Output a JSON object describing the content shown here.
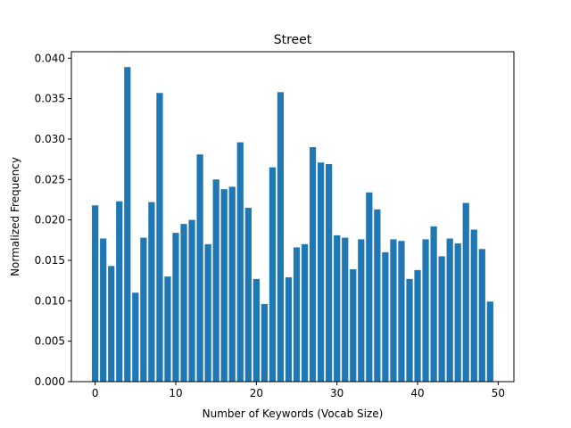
{
  "chart_data": {
    "type": "bar",
    "title": "Street",
    "xlabel": "Number of Keywords (Vocab Size)",
    "ylabel": "Normalized Frequency",
    "x": [
      0,
      1,
      2,
      3,
      4,
      5,
      6,
      7,
      8,
      9,
      10,
      11,
      12,
      13,
      14,
      15,
      16,
      17,
      18,
      19,
      20,
      21,
      22,
      23,
      24,
      25,
      26,
      27,
      28,
      29,
      30,
      31,
      32,
      33,
      34,
      35,
      36,
      37,
      38,
      39,
      40,
      41,
      42,
      43,
      44,
      45,
      46,
      47,
      48,
      49
    ],
    "values": [
      0.0218,
      0.0177,
      0.0143,
      0.0223,
      0.0389,
      0.011,
      0.0178,
      0.0222,
      0.0357,
      0.013,
      0.0184,
      0.0195,
      0.02,
      0.0281,
      0.017,
      0.025,
      0.0238,
      0.0241,
      0.0296,
      0.0215,
      0.0127,
      0.0096,
      0.0265,
      0.0358,
      0.0129,
      0.0166,
      0.017,
      0.029,
      0.0271,
      0.0269,
      0.0181,
      0.0178,
      0.0139,
      0.0176,
      0.0234,
      0.0213,
      0.016,
      0.0176,
      0.0174,
      0.0127,
      0.0138,
      0.0176,
      0.0192,
      0.0155,
      0.0177,
      0.0171,
      0.0221,
      0.0188,
      0.0164,
      0.0099
    ],
    "xlim": [
      -2.95,
      51.95
    ],
    "ylim": [
      0,
      0.0408
    ],
    "xticks": [
      0,
      10,
      20,
      30,
      40,
      50
    ],
    "xtick_labels": [
      "0",
      "10",
      "20",
      "30",
      "40",
      "50"
    ],
    "yticks": [
      0.0,
      0.005,
      0.01,
      0.015,
      0.02,
      0.025,
      0.03,
      0.035,
      0.04
    ],
    "ytick_labels": [
      "0.000",
      "0.005",
      "0.010",
      "0.015",
      "0.020",
      "0.025",
      "0.030",
      "0.035",
      "0.040"
    ],
    "bar_color": "#1f77b4",
    "grid": false,
    "legend": false
  }
}
